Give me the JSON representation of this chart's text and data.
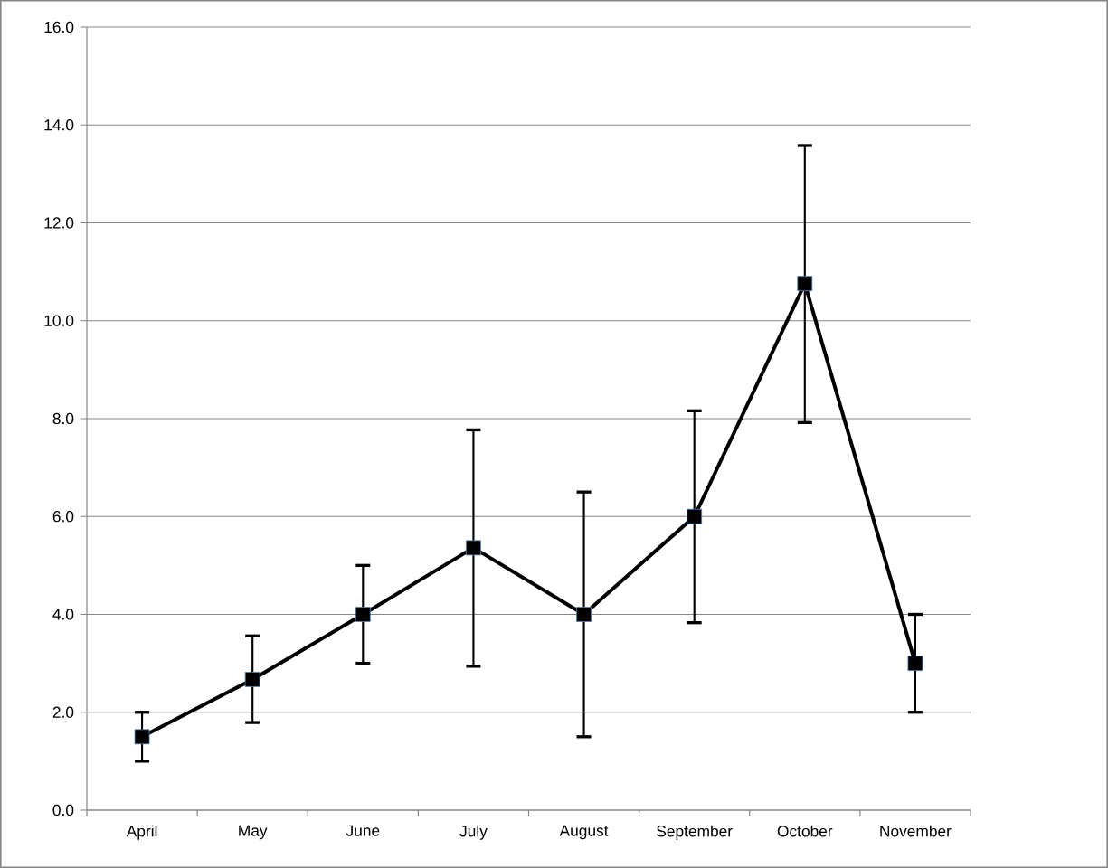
{
  "chart_data": {
    "type": "line",
    "categories": [
      "April",
      "May",
      "June",
      "July",
      "August",
      "September",
      "October",
      "November"
    ],
    "values": [
      1.5,
      2.67,
      4.0,
      5.36,
      4.0,
      6.0,
      10.76,
      3.0
    ],
    "errors": [
      [
        1.0,
        2.0
      ],
      [
        1.79,
        3.56
      ],
      [
        3.0,
        5.0
      ],
      [
        2.94,
        7.77
      ],
      [
        1.5,
        6.5
      ],
      [
        3.83,
        8.16
      ],
      [
        7.92,
        13.58
      ],
      [
        2.0,
        4.0
      ]
    ],
    "color": "#000000",
    "marker": "square",
    "line_style": "solid",
    "grid": "y",
    "ylim": [
      0,
      16
    ],
    "yticks": [
      {
        "value": 0,
        "label": "0.0"
      },
      {
        "value": 2,
        "label": "2.0"
      },
      {
        "value": 4,
        "label": "4.0"
      },
      {
        "value": 6,
        "label": "6.0"
      },
      {
        "value": 8,
        "label": "8.0"
      },
      {
        "value": 10,
        "label": "10.0"
      },
      {
        "value": 12,
        "label": "12.0"
      },
      {
        "value": 14,
        "label": "14.0"
      },
      {
        "value": 16,
        "label": "16.0"
      }
    ]
  }
}
